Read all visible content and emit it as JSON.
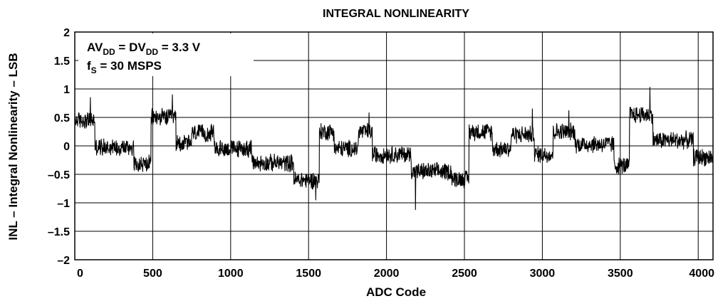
{
  "chart_data": {
    "type": "line",
    "title": "INTEGRAL NONLINEARITY",
    "xlabel": "ADC Code",
    "ylabel": "INL – Integral Nonlinearity – LSB",
    "xlim": [
      0,
      4095
    ],
    "ylim": [
      -2,
      2
    ],
    "x_ticks": [
      0,
      500,
      1000,
      1500,
      2000,
      2500,
      3000,
      3500,
      4000
    ],
    "y_ticks": [
      -2,
      -1.5,
      -1,
      -0.5,
      0,
      0.5,
      1,
      1.5,
      2
    ],
    "y_tick_labels": [
      "–2",
      "–1.5",
      "–1",
      "–0.5",
      "0",
      "0.5",
      "1",
      "1.5",
      "2"
    ],
    "grid": true,
    "annotation": {
      "line1": {
        "a": "AV",
        "a_sub": "DD",
        "b": " = DV",
        "b_sub": "DD",
        "c": " = 3.3 V"
      },
      "line2": {
        "a": "f",
        "a_sub": "S",
        "b": " = 30 MSPS"
      }
    },
    "segments": [
      [
        0,
        115,
        0.45
      ],
      [
        130,
        370,
        -0.02
      ],
      [
        380,
        480,
        -0.32
      ],
      [
        490,
        640,
        0.5
      ],
      [
        650,
        740,
        0.05
      ],
      [
        750,
        880,
        0.22
      ],
      [
        895,
        1120,
        -0.05
      ],
      [
        1135,
        1390,
        -0.3
      ],
      [
        1405,
        1560,
        -0.6
      ],
      [
        1570,
        1655,
        0.25
      ],
      [
        1665,
        1810,
        -0.05
      ],
      [
        1820,
        1900,
        0.25
      ],
      [
        1910,
        2150,
        -0.15
      ],
      [
        2160,
        2410,
        -0.45
      ],
      [
        2420,
        2520,
        -0.58
      ],
      [
        2530,
        2670,
        0.25
      ],
      [
        2680,
        2790,
        -0.05
      ],
      [
        2800,
        2940,
        0.2
      ],
      [
        2950,
        3060,
        -0.15
      ],
      [
        3070,
        3200,
        0.25
      ],
      [
        3210,
        3450,
        0.03
      ],
      [
        3460,
        3550,
        -0.35
      ],
      [
        3560,
        3700,
        0.55
      ],
      [
        3710,
        3960,
        0.1
      ],
      [
        3970,
        4095,
        -0.2
      ]
    ],
    "noise_amplitude": 0.17,
    "spikes": [
      [
        100,
        0.85
      ],
      [
        625,
        0.9
      ],
      [
        1545,
        -0.95
      ],
      [
        1888,
        0.58
      ],
      [
        2185,
        -1.12
      ],
      [
        2935,
        0.65
      ],
      [
        3170,
        0.62
      ],
      [
        3690,
        1.03
      ]
    ]
  }
}
